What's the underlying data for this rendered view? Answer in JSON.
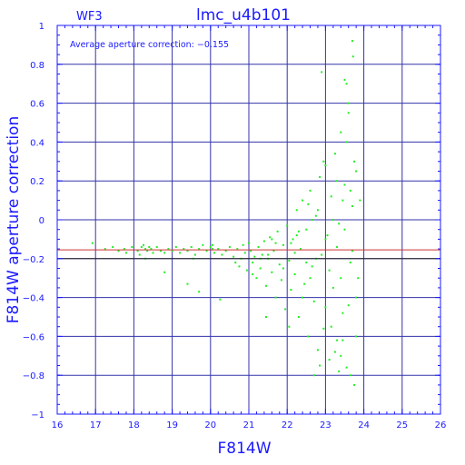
{
  "chart_data": {
    "type": "scatter",
    "title": "lmc_u4b101",
    "chip_label": "WF3",
    "annotation": "Average aperture correction:  −0.155",
    "xlabel": "F814W",
    "ylabel": "F814W aperture correction",
    "xlim": [
      16,
      26
    ],
    "ylim": [
      -1,
      1
    ],
    "xticks": [
      16,
      17,
      18,
      19,
      20,
      21,
      22,
      23,
      24,
      25,
      26
    ],
    "yticks": [
      -1,
      -0.8,
      -0.6,
      -0.4,
      -0.2,
      0,
      0.2,
      0.4,
      0.6,
      0.8,
      1
    ],
    "grid": true,
    "reference_lines": [
      {
        "y": -0.155,
        "color": "#cc3333"
      },
      {
        "y": -0.2,
        "color": "#222222"
      }
    ],
    "colors": {
      "axes": "#1a1aff",
      "grid": "#3333aa",
      "points": "#22ee22"
    },
    "series": [
      {
        "points": [
          [
            16.92,
            -0.12
          ],
          [
            17.25,
            -0.15
          ],
          [
            17.45,
            -0.14
          ],
          [
            17.6,
            -0.16
          ],
          [
            17.75,
            -0.15
          ],
          [
            17.8,
            -0.17
          ],
          [
            17.95,
            -0.14
          ],
          [
            18.1,
            -0.16
          ],
          [
            18.15,
            -0.18
          ],
          [
            18.2,
            -0.14
          ],
          [
            18.25,
            -0.13
          ],
          [
            18.3,
            -0.15
          ],
          [
            18.35,
            -0.16
          ],
          [
            18.4,
            -0.14
          ],
          [
            18.45,
            -0.15
          ],
          [
            18.5,
            -0.17
          ],
          [
            18.6,
            -0.14
          ],
          [
            18.7,
            -0.16
          ],
          [
            18.8,
            -0.17
          ],
          [
            18.9,
            -0.15
          ],
          [
            19.0,
            -0.16
          ],
          [
            19.1,
            -0.14
          ],
          [
            19.2,
            -0.17
          ],
          [
            19.3,
            -0.15
          ],
          [
            19.4,
            -0.16
          ],
          [
            19.5,
            -0.14
          ],
          [
            19.6,
            -0.18
          ],
          [
            19.7,
            -0.15
          ],
          [
            19.8,
            -0.13
          ],
          [
            19.9,
            -0.16
          ],
          [
            20.0,
            -0.14
          ],
          [
            20.05,
            -0.13
          ],
          [
            20.1,
            -0.17
          ],
          [
            20.2,
            -0.15
          ],
          [
            20.3,
            -0.18
          ],
          [
            20.4,
            -0.16
          ],
          [
            20.5,
            -0.14
          ],
          [
            20.6,
            -0.19
          ],
          [
            20.7,
            -0.15
          ],
          [
            20.8,
            -0.2
          ],
          [
            20.9,
            -0.17
          ],
          [
            18.3,
            -0.2
          ],
          [
            18.8,
            -0.27
          ],
          [
            19.4,
            -0.33
          ],
          [
            19.7,
            -0.37
          ],
          [
            20.25,
            -0.41
          ],
          [
            20.05,
            -0.15
          ],
          [
            19.55,
            -0.2
          ],
          [
            20.65,
            -0.22
          ],
          [
            20.75,
            -0.24
          ],
          [
            20.85,
            -0.13
          ],
          [
            20.95,
            -0.26
          ],
          [
            21.0,
            -0.12
          ],
          [
            21.05,
            -0.16
          ],
          [
            21.1,
            -0.22
          ],
          [
            21.15,
            -0.19
          ],
          [
            21.2,
            -0.3
          ],
          [
            21.25,
            -0.14
          ],
          [
            21.3,
            -0.25
          ],
          [
            21.35,
            -0.18
          ],
          [
            21.4,
            -0.11
          ],
          [
            21.45,
            -0.34
          ],
          [
            21.5,
            -0.2
          ],
          [
            21.55,
            -0.09
          ],
          [
            21.6,
            -0.27
          ],
          [
            21.65,
            -0.16
          ],
          [
            21.7,
            -0.4
          ],
          [
            21.75,
            -0.06
          ],
          [
            21.8,
            -0.23
          ],
          [
            21.85,
            -0.31
          ],
          [
            21.9,
            -0.13
          ],
          [
            21.95,
            -0.46
          ],
          [
            22.0,
            -0.03
          ],
          [
            22.05,
            -0.21
          ],
          [
            22.1,
            -0.36
          ],
          [
            22.15,
            -0.1
          ],
          [
            22.2,
            -0.28
          ],
          [
            22.25,
            0.05
          ],
          [
            22.3,
            -0.5
          ],
          [
            22.35,
            -0.15
          ],
          [
            22.4,
            0.1
          ],
          [
            22.45,
            -0.33
          ],
          [
            22.5,
            -0.05
          ],
          [
            22.55,
            -0.6
          ],
          [
            22.6,
            0.15
          ],
          [
            22.65,
            -0.24
          ],
          [
            22.7,
            -0.42
          ],
          [
            22.75,
            0.02
          ],
          [
            22.8,
            -0.67
          ],
          [
            22.85,
            0.22
          ],
          [
            22.9,
            -0.18
          ],
          [
            22.95,
            -0.56
          ],
          [
            23.0,
            0.28
          ],
          [
            23.05,
            -0.08
          ],
          [
            23.1,
            -0.72
          ],
          [
            23.15,
            0.12
          ],
          [
            23.2,
            -0.35
          ],
          [
            23.25,
            0.34
          ],
          [
            23.3,
            -0.62
          ],
          [
            23.35,
            -0.02
          ],
          [
            23.4,
            0.45
          ],
          [
            23.45,
            -0.48
          ],
          [
            23.5,
            0.18
          ],
          [
            23.55,
            -0.76
          ],
          [
            23.6,
            0.6
          ],
          [
            23.65,
            -0.22
          ],
          [
            23.7,
            0.07
          ],
          [
            23.75,
            -0.85
          ],
          [
            23.5,
            0.72
          ],
          [
            23.55,
            0.7
          ],
          [
            23.7,
            0.92
          ],
          [
            23.72,
            0.84
          ],
          [
            23.6,
            0.55
          ],
          [
            23.8,
            0.25
          ],
          [
            22.9,
            0.76
          ],
          [
            22.95,
            0.3
          ],
          [
            23.8,
            -0.4
          ],
          [
            23.85,
            -0.3
          ],
          [
            23.9,
            0.1
          ],
          [
            23.35,
            -0.78
          ],
          [
            23.65,
            -0.8
          ],
          [
            23.45,
            -0.62
          ],
          [
            22.7,
            -0.8
          ],
          [
            22.85,
            -0.75
          ],
          [
            21.45,
            -0.5
          ],
          [
            21.1,
            -0.28
          ],
          [
            22.2,
            -0.17
          ],
          [
            22.25,
            -0.08
          ],
          [
            22.5,
            -0.22
          ],
          [
            22.6,
            -0.3
          ],
          [
            22.75,
            -0.2
          ],
          [
            23.0,
            -0.1
          ],
          [
            23.1,
            -0.26
          ],
          [
            23.2,
            0.0
          ],
          [
            23.3,
            -0.14
          ],
          [
            23.4,
            -0.3
          ],
          [
            23.5,
            -0.05
          ],
          [
            23.6,
            -0.44
          ],
          [
            23.7,
            -0.16
          ],
          [
            23.75,
            0.3
          ],
          [
            23.8,
            -0.6
          ],
          [
            23.55,
            0.4
          ],
          [
            22.4,
            -0.4
          ],
          [
            22.05,
            -0.55
          ],
          [
            21.9,
            -0.25
          ],
          [
            21.7,
            -0.12
          ],
          [
            21.5,
            -0.18
          ],
          [
            21.3,
            -0.2
          ],
          [
            21.6,
            -0.1
          ],
          [
            22.1,
            -0.12
          ],
          [
            22.3,
            -0.06
          ],
          [
            22.8,
            0.05
          ],
          [
            23.0,
            -0.45
          ],
          [
            23.15,
            -0.55
          ],
          [
            23.3,
            0.2
          ],
          [
            23.45,
            0.1
          ],
          [
            23.65,
            0.15
          ],
          [
            23.25,
            -0.68
          ],
          [
            23.4,
            -0.7
          ],
          [
            22.65,
            0.0
          ],
          [
            22.55,
            0.08
          ]
        ]
      }
    ]
  }
}
